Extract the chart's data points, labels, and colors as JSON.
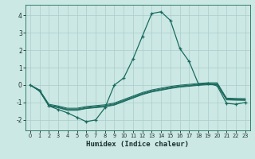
{
  "xlabel": "Humidex (Indice chaleur)",
  "bg_color": "#cce8e4",
  "grid_color": "#aacccc",
  "line_color": "#1a6b5e",
  "xlim": [
    -0.5,
    23.5
  ],
  "ylim": [
    -2.6,
    4.6
  ],
  "xticks": [
    0,
    1,
    2,
    3,
    4,
    5,
    6,
    7,
    8,
    9,
    10,
    11,
    12,
    13,
    14,
    15,
    16,
    17,
    18,
    19,
    20,
    21,
    22,
    23
  ],
  "yticks": [
    -2,
    -1,
    0,
    1,
    2,
    3,
    4
  ],
  "main_curve": [
    0.0,
    -0.3,
    -1.2,
    -1.4,
    -1.6,
    -1.85,
    -2.1,
    -2.0,
    -1.3,
    0.0,
    0.4,
    1.5,
    2.8,
    4.1,
    4.2,
    3.7,
    2.1,
    1.35,
    0.05,
    0.1,
    -0.05,
    -1.05,
    -1.1,
    -1.0
  ],
  "flat_lines": [
    [
      0.0,
      -0.35,
      -1.2,
      -1.3,
      -1.45,
      -1.45,
      -1.35,
      -1.3,
      -1.25,
      -1.15,
      -0.95,
      -0.75,
      -0.55,
      -0.4,
      -0.3,
      -0.2,
      -0.12,
      -0.07,
      -0.02,
      0.02,
      0.02,
      -0.85,
      -0.87,
      -0.88
    ],
    [
      0.0,
      -0.35,
      -1.18,
      -1.28,
      -1.42,
      -1.42,
      -1.32,
      -1.27,
      -1.22,
      -1.12,
      -0.92,
      -0.72,
      -0.52,
      -0.37,
      -0.27,
      -0.17,
      -0.09,
      -0.04,
      0.01,
      0.05,
      0.05,
      -0.82,
      -0.84,
      -0.85
    ],
    [
      0.0,
      -0.3,
      -1.15,
      -1.25,
      -1.38,
      -1.38,
      -1.28,
      -1.23,
      -1.18,
      -1.08,
      -0.88,
      -0.68,
      -0.48,
      -0.33,
      -0.23,
      -0.13,
      -0.06,
      -0.01,
      0.04,
      0.08,
      0.08,
      -0.79,
      -0.81,
      -0.82
    ],
    [
      0.0,
      -0.28,
      -1.1,
      -1.2,
      -1.33,
      -1.33,
      -1.23,
      -1.18,
      -1.13,
      -1.03,
      -0.83,
      -0.63,
      -0.43,
      -0.28,
      -0.18,
      -0.08,
      -0.01,
      0.04,
      0.09,
      0.13,
      0.13,
      -0.75,
      -0.77,
      -0.78
    ]
  ]
}
